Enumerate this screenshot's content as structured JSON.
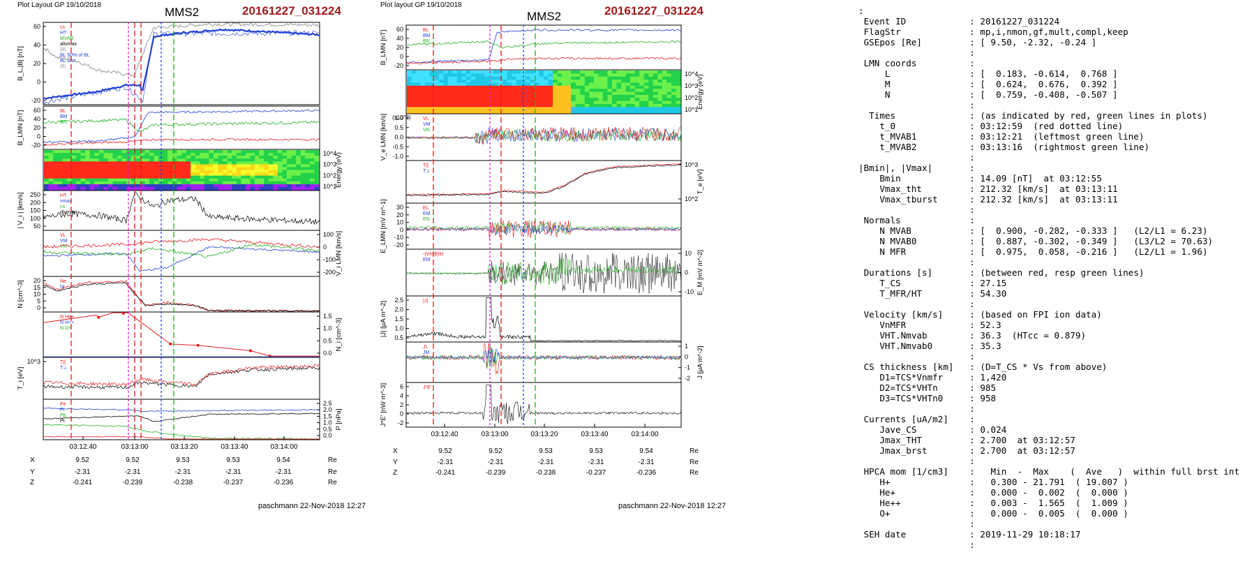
{
  "left": {
    "header_small": "Plot Layout GP 19/10/2018",
    "spacecraft": "MMS2",
    "event": "20161227_031224",
    "footer": "paschmann 22-Nov-2018 12:27",
    "panels": [
      {
        "key": "bl",
        "ylabel": "B_L,|B| [nT]",
        "right_label": "",
        "yticks": [
          "60",
          "40",
          "20",
          "0",
          "-20"
        ],
        "ymin": -25,
        "ymax": 68,
        "legend": [
          "cs",
          "HT",
          "MVAB",
          "altvmax",
          "|B|",
          "BL 50% of BL",
          "BL brst",
          "|B|"
        ]
      },
      {
        "key": "blmn",
        "ylabel": "B_LMN [nT]",
        "right_label": "",
        "yticks": [
          "60",
          "40",
          "20",
          "0",
          "-20"
        ],
        "ymin": -25,
        "ymax": 63,
        "legend": [
          "BL",
          "BM",
          "BN"
        ]
      },
      {
        "key": "spec",
        "ylabel": "",
        "right_label": "Energy (eV)",
        "yticks": [
          "10^4",
          "10^3",
          "10^2",
          "10^1"
        ]
      },
      {
        "key": "vi",
        "ylabel": "| V_i | [km/s]",
        "right_label": "",
        "yticks": [
          "250",
          "200",
          "150",
          "100",
          "50"
        ],
        "ymin": 20,
        "ymax": 260,
        "legend": [
          "HT",
          "vmax",
          "cs",
          "divmax"
        ]
      },
      {
        "key": "vlmn",
        "ylabel": "",
        "right_label": "V_i LMN [km/s]",
        "yticks": [
          "100",
          "0",
          "-100",
          "-200"
        ],
        "ymin": -210,
        "ymax": 150,
        "legend": [
          "VL",
          "VM",
          "VN"
        ]
      },
      {
        "key": "n",
        "ylabel": "N [cm^-3]",
        "right_label": "",
        "yticks": [
          "20",
          "15",
          "10",
          "5",
          "0"
        ],
        "ymin": 0,
        "ymax": 22,
        "legend": [
          "Ne",
          "Ni"
        ]
      },
      {
        "key": "ni",
        "ylabel": "",
        "right_label": "N_i [cm^-3]",
        "yticks": [
          "1.5",
          "1.0",
          "0.5",
          "0.0"
        ],
        "ymin": 0,
        "ymax": 1.7,
        "legend": [
          "N He+",
          "N H++",
          "N O+"
        ]
      },
      {
        "key": "ti",
        "ylabel": "T_i [eV]",
        "right_label": "",
        "yticks": [
          "10^3"
        ],
        "legend": [
          "T||",
          "T⊥"
        ]
      },
      {
        "key": "p",
        "ylabel": "",
        "right_label": "P [nPa]",
        "yticks": [
          "2.5",
          "2.0",
          "1.5",
          "1.0",
          "0.5",
          "0.0"
        ],
        "ymin": 0,
        "ymax": 2.7,
        "legend": [
          "Pe",
          "Pi",
          "Pb",
          "Pt"
        ]
      }
    ],
    "time_ticks": [
      "03:12:40",
      "03:13:00",
      "03:13:20",
      "03:13:40",
      "03:14:00"
    ],
    "orbit": {
      "labels": [
        "X",
        "Y",
        "Z"
      ],
      "X": [
        "9.52",
        "9.52",
        "9.53",
        "9.53",
        "9.54"
      ],
      "Y": [
        "-2.31",
        "-2.31",
        "-2.31",
        "-2.31",
        "-2.31"
      ],
      "Z": [
        "-0.241",
        "-0.239",
        "-0.238",
        "-0.237",
        "-0.236"
      ],
      "unit": "Re"
    }
  },
  "mid": {
    "header_small": "Plot layout GP 19/10/2018",
    "spacecraft": "MMS2",
    "event": "20161227_031224",
    "footer": "paschmann 22-Nov-2018 12:27",
    "panels": [
      {
        "key": "blmn",
        "ylabel": "B_LMN [nT]",
        "right_label": "",
        "yticks": [
          "60",
          "40",
          "20",
          "0",
          "-20"
        ],
        "ymin": -25,
        "ymax": 65,
        "legend": [
          "BL",
          "BM",
          "BN"
        ]
      },
      {
        "key": "espec",
        "ylabel": "",
        "right_label": "Energy (eV)",
        "yticks": [
          "10^4",
          "10^3",
          "10^2",
          "10^1"
        ]
      },
      {
        "key": "ve",
        "ylabel": "V_e LMN [km/s]",
        "right_label": "",
        "yticks": [
          "1.0",
          "0.5",
          "0.0",
          "-0.5",
          "-1.0"
        ],
        "ymin": -1.15,
        "ymax": 1.2,
        "note": "(x10^3)",
        "legend": [
          "VL",
          "VM",
          "VN"
        ]
      },
      {
        "key": "te",
        "ylabel": "",
        "right_label": "T_e [eV]",
        "yticks": [
          "10^3",
          "10^2"
        ],
        "legend": [
          "T||",
          "T⊥"
        ]
      },
      {
        "key": "elmn",
        "ylabel": "E_LMN [mV m^-1]",
        "right_label": "",
        "yticks": [
          "30",
          "20",
          "10",
          "0",
          "-10",
          "-20"
        ],
        "ymin": -25,
        "ymax": 33,
        "legend": [
          "EL",
          "EM",
          "EN"
        ]
      },
      {
        "key": "em",
        "ylabel": "",
        "right_label": "E_M [mV m^-2]",
        "yticks": [
          "10",
          "0",
          "-10"
        ],
        "ymin": -13,
        "ymax": 14,
        "legend": [
          "-(VexB)M",
          "EM"
        ]
      },
      {
        "key": "j",
        "ylabel": "|J| [µA m^-2]",
        "right_label": "",
        "yticks": [
          "2.5",
          "2.0",
          "1.5",
          "1.0",
          "0.5"
        ],
        "ymin": 0,
        "ymax": 2.7,
        "legend": [
          "|J|"
        ]
      },
      {
        "key": "jlmn",
        "ylabel": "",
        "right_label": "J [µA m^-2]",
        "yticks": [
          "1",
          "0",
          "-1",
          "-2"
        ],
        "ymin": -2.6,
        "ymax": 1.6,
        "legend": [
          "JL",
          "JM",
          "JN"
        ]
      },
      {
        "key": "jdote",
        "ylabel": "J*E' [nW m^-3]",
        "right_label": "",
        "yticks": [
          "6",
          "4",
          "2",
          "0",
          "-2"
        ],
        "ymin": -3,
        "ymax": 6.5,
        "legend": [
          "J*E'"
        ]
      }
    ],
    "time_ticks": [
      "03:12:40",
      "03:13:00",
      "03:13:20",
      "03:13:40",
      "03:14:00"
    ],
    "orbit": {
      "labels": [
        "X",
        "Y",
        "Z"
      ],
      "X": [
        "9.52",
        "9.52",
        "9.53",
        "9.53",
        "9.54"
      ],
      "Y": [
        "-2.31",
        "-2.31",
        "-2.31",
        "-2.31",
        "-2.31"
      ],
      "Z": [
        "-0.241",
        "-0.239",
        "-0.238",
        "-0.237",
        "-0.236"
      ],
      "unit": "Re"
    }
  },
  "colors": {
    "red": "#e31a1c",
    "blue": "#1f3fd6",
    "green": "#22b022",
    "black": "#000000",
    "magenta": "#d81be0",
    "grey": "#999999",
    "event": "#a0191c"
  },
  "info_lines": [
    ":",
    " Event ID            : 20161227_031224",
    " FlagStr             : mp,i,nmon,gf,mult,compl,keep",
    " GSEpos [Re]         : [ 9.50, -2.32, -0.24 ]",
    "                     :",
    " LMN coords          :",
    "     L               : [  0.183, -0.614,  0.768 ]",
    "     M               : [  0.624,  0.676,  0.392 ]",
    "     N               : [  0.759, -0.408, -0.507 ]",
    "                     :",
    "  Times              : (as indicated by red, green lines in plots)",
    "    t_0              : 03:12:59  (red dotted line)",
    "    t_MVAB1          : 03:12:21  (leftmost green line)",
    "    t_MVAB2          : 03:13:16  (rightmost green line)",
    "                     :",
    "|Bmin|, |Vmax|       :",
    "    Bmin             : 14.09 [nT]  at 03:12:55",
    "    Vmax_tht         : 212.32 [km/s]  at 03:13:11",
    "    Vmax_tburst      : 212.32 [km/s]  at 03:13:11",
    "                     :",
    " Normals             :",
    "    N MVAB           : [  0.900, -0.282, -0.333 ]   (L2/L1 = 6.23)",
    "    N MVAB0          : [  0.887, -0.302, -0.349 ]   (L3/L2 = 70.63)",
    "    N MFR            : [  0.975,  0.058, -0.216 ]   (L2/L1 = 1.96)",
    "                     :",
    " Durations [s]       : (between red, resp green lines)",
    "    T_CS             : 27.15",
    "    T_MFR/HT         : 54.30",
    "                     :",
    " Velocity [km/s]     : (based on FPI ion data)",
    "    VnMFR            : 52.3",
    "    VHT.Nmvab        : 36.3  (HTcc = 0.879)",
    "    VHT.Nmvab0       : 35.3",
    "                     :",
    " CS thickness [km]   : (D=T_CS * Vs from above)",
    "    D1=TCS*Vnmfr     : 1,420",
    "    D2=TCS*VHTn      : 985",
    "    D3=TCS*VHTn0     : 958",
    "                     :",
    " Currents [uA/m2]    :",
    "    Jave_CS          : 0.024",
    "    Jmax_THT         : 2.700  at 03:12:57",
    "    Jmax_brst        : 2.700  at 03:12:57",
    "                     :",
    " HPCA mom [1/cm3]    :   Min  -  Max    (  Ave   )  within full brst int",
    "    H+               :   0.300 - 21.791  ( 19.007 )",
    "    He+              :   0.000 -  0.002  (  0.000 )",
    "    He++             :   0.003 -  1.565  (  1.009 )",
    "    O+               :   0.000 -  0.005  (  0.000 )",
    "                     :",
    " SEH date            : 2019-11-29 10:18:17",
    "                     :"
  ]
}
